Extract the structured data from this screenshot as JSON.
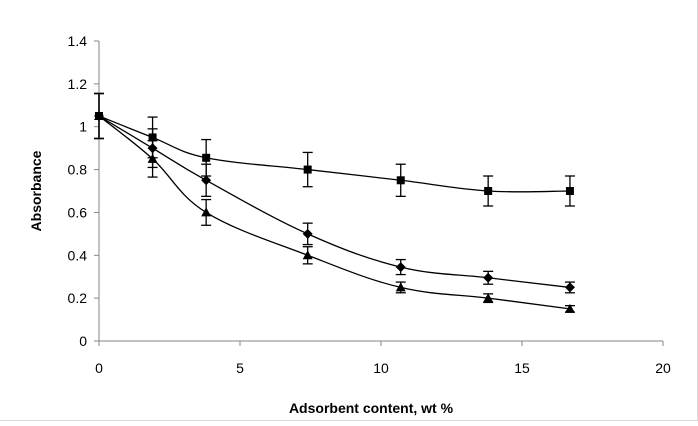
{
  "chart_data": {
    "type": "line",
    "title": "",
    "xlabel": "Adsorbent content, wt %",
    "ylabel": "Absorbance",
    "xlim": [
      0,
      20
    ],
    "ylim": [
      0,
      1.4
    ],
    "xticks": [
      0,
      5,
      10,
      15,
      20
    ],
    "yticks": [
      0,
      0.2,
      0.4,
      0.6,
      0.8,
      1,
      1.2,
      1.4
    ],
    "xtick_labels": [
      "0",
      "5",
      "10",
      "15",
      "20"
    ],
    "ytick_labels": [
      "0",
      "0.2",
      "0.4",
      "0.6",
      "0.8",
      "1",
      "1.2",
      "1.4"
    ],
    "grid": false,
    "legend": "none",
    "series": [
      {
        "marker": "square",
        "color": "#000000",
        "x": [
          0,
          1.9,
          3.8,
          7.4,
          10.7,
          13.8,
          16.7
        ],
        "y": [
          1.05,
          0.95,
          0.855,
          0.8,
          0.75,
          0.7,
          0.7
        ],
        "err": [
          0.105,
          0.095,
          0.085,
          0.08,
          0.075,
          0.07,
          0.07
        ]
      },
      {
        "marker": "diamond",
        "color": "#000000",
        "x": [
          0,
          1.9,
          3.8,
          7.4,
          10.7,
          13.8,
          16.7
        ],
        "y": [
          1.05,
          0.9,
          0.75,
          0.5,
          0.345,
          0.295,
          0.25
        ],
        "err": [
          0.105,
          0.09,
          0.075,
          0.05,
          0.035,
          0.03,
          0.025
        ]
      },
      {
        "marker": "triangle",
        "color": "#000000",
        "x": [
          0,
          1.9,
          3.8,
          7.4,
          10.7,
          13.8,
          16.7
        ],
        "y": [
          1.05,
          0.85,
          0.6,
          0.4,
          0.25,
          0.2,
          0.15
        ],
        "err": [
          0.105,
          0.085,
          0.06,
          0.04,
          0.025,
          0.02,
          0.015
        ]
      }
    ]
  }
}
